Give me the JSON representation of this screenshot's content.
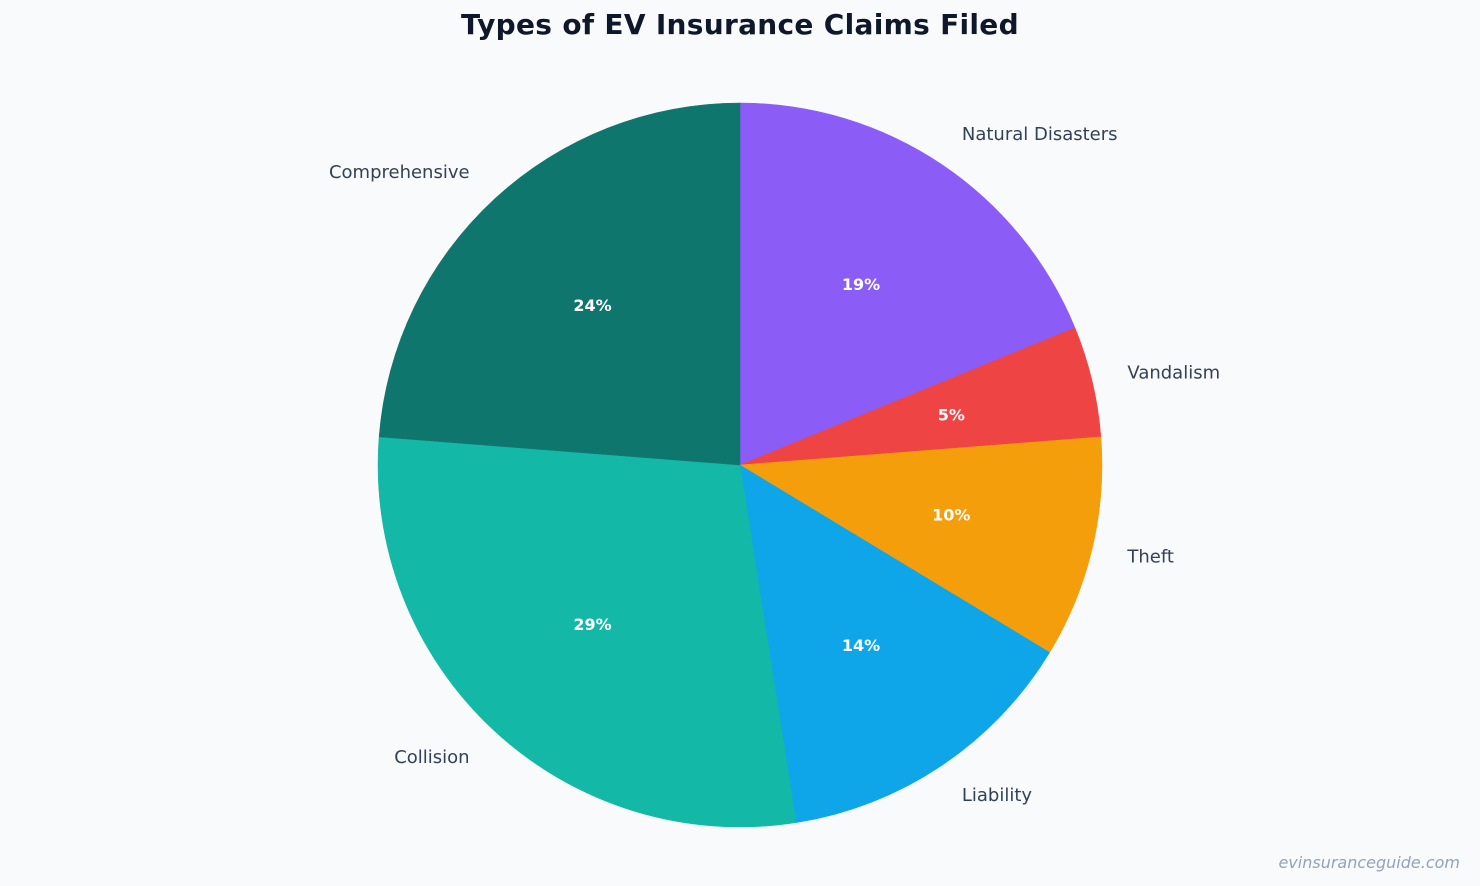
{
  "chart_data": {
    "type": "pie",
    "title": "Types of EV Insurance Claims Filed",
    "categories": [
      "Natural Disasters",
      "Vandalism",
      "Theft",
      "Liability",
      "Collision",
      "Comprehensive"
    ],
    "values": [
      19,
      5,
      10,
      14,
      29,
      24
    ],
    "value_labels": [
      "19%",
      "5%",
      "10%",
      "14%",
      "29%",
      "24%"
    ],
    "colors": [
      "#8b5cf6",
      "#ef4444",
      "#f59e0b",
      "#0ea5e9",
      "#14b8a6",
      "#0f766e"
    ],
    "start_angle": "12 o'clock",
    "direction": "clockwise",
    "legend": "none"
  },
  "watermark": "evinsuranceguide.com"
}
